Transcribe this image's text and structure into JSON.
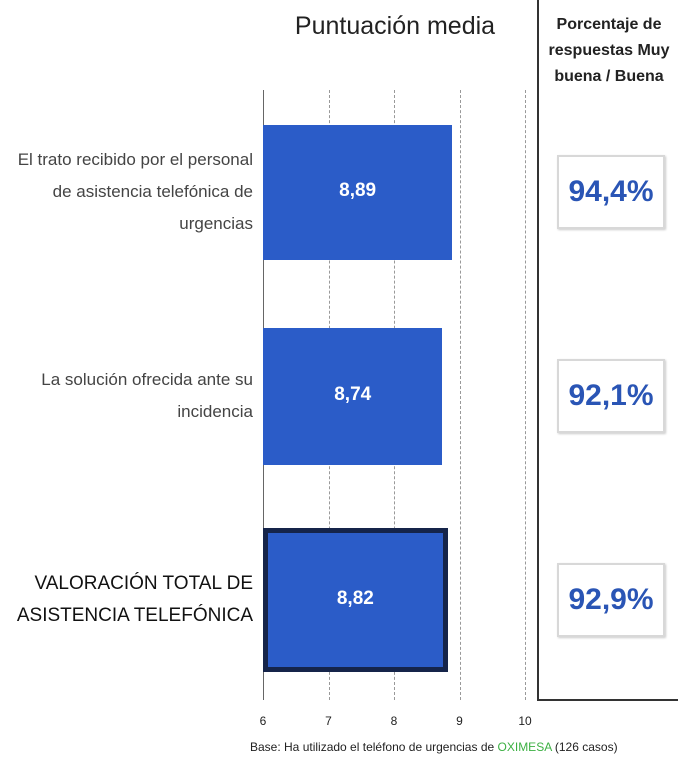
{
  "chart_data": {
    "type": "bar",
    "orientation": "horizontal",
    "title": "Puntuación media",
    "categories": [
      "El trato recibido por el personal de asistencia telefónica de urgencias",
      "La solución ofrecida ante su incidencia",
      "VALORACIÓN TOTAL DE ASISTENCIA TELEFÓNICA"
    ],
    "values": [
      8.89,
      8.74,
      8.82
    ],
    "value_labels": [
      "8,89",
      "8,74",
      "8,82"
    ],
    "color": "#2b5cc8",
    "xlim": [
      6,
      10
    ],
    "xticks": [
      6,
      7,
      8,
      9,
      10
    ],
    "grid": true
  },
  "side_panel": {
    "title": "Porcentaje de respuestas Muy buena / Buena",
    "values": [
      94.4,
      92.1,
      92.9
    ],
    "value_labels": [
      "94,4%",
      "92,1%",
      "92,9%"
    ]
  },
  "footer": {
    "prefix": "Base: Ha utilizado el teléfono de urgencias  de",
    "brand": "OXIMESA",
    "suffix": "(126 casos)"
  }
}
